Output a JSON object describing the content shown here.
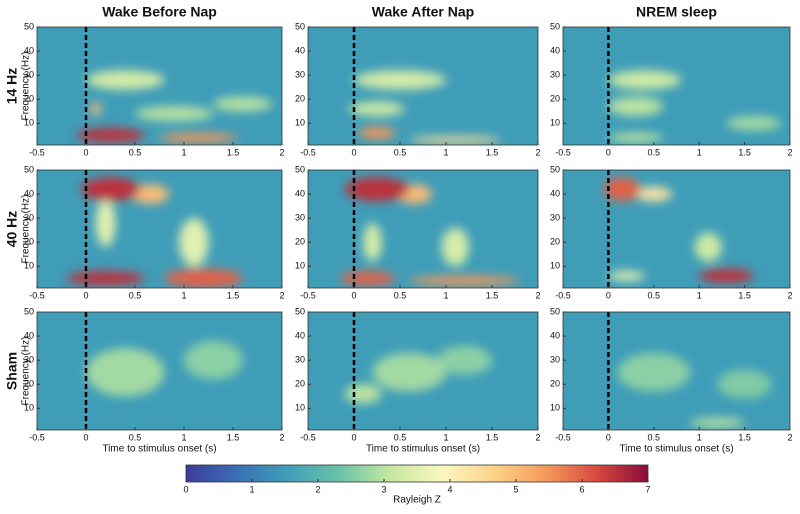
{
  "chart_data": {
    "type": "heatmap",
    "columns": [
      "Wake Before Nap",
      "Wake After Nap",
      "NREM sleep"
    ],
    "rows": [
      "14 Hz",
      "40 Hz",
      "Sham"
    ],
    "xlabel": "Time to stimulus onset (s)",
    "ylabel": "Frequency (Hz)",
    "xlim": [
      -0.5,
      2
    ],
    "xticks": [
      -0.5,
      0,
      0.5,
      1,
      1.5,
      2
    ],
    "ylim": [
      1,
      50
    ],
    "yticks": [
      10,
      20,
      30,
      40,
      50
    ],
    "onset": 0,
    "background_z": 1.5,
    "colorbar": {
      "label": "Rayleigh Z",
      "lim": [
        0,
        7
      ],
      "ticks": [
        0,
        1,
        2,
        3,
        4,
        5,
        6,
        7
      ],
      "colors": [
        "#3b3c9c",
        "#3a6fb5",
        "#3fa0b8",
        "#6cc3a8",
        "#c7e8a0",
        "#fbf7c0",
        "#fdd38a",
        "#f59a5b",
        "#d8493f",
        "#8a0c3a"
      ]
    },
    "panels": [
      [
        [
          {
            "t": 1.6,
            "f": 18,
            "dt": 0.3,
            "df": 3,
            "z": 3
          },
          {
            "t": 0.9,
            "f": 14,
            "dt": 0.4,
            "df": 3,
            "z": 3
          },
          {
            "t": 0.4,
            "f": 28,
            "dt": 0.4,
            "df": 4,
            "z": 3.3
          },
          {
            "t": 0.1,
            "f": 16,
            "dt": 0.05,
            "df": 3,
            "z": 5
          },
          {
            "t": 1.15,
            "f": 4,
            "dt": 0.4,
            "df": 2,
            "z": 5.5
          },
          {
            "t": 0.25,
            "f": 5,
            "dt": 0.35,
            "df": 3,
            "z": 6.5
          }
        ],
        [
          {
            "t": 0.25,
            "f": 16,
            "dt": 0.3,
            "df": 3,
            "z": 3.2
          },
          {
            "t": 0.5,
            "f": 28,
            "dt": 0.5,
            "df": 4,
            "z": 3.3
          },
          {
            "t": 1.1,
            "f": 3,
            "dt": 0.5,
            "df": 1.5,
            "z": 4.5
          },
          {
            "t": 0.25,
            "f": 6,
            "dt": 0.2,
            "df": 2.5,
            "z": 5.5
          }
        ],
        [
          {
            "t": 1.6,
            "f": 10,
            "dt": 0.3,
            "df": 3,
            "z": 2.8
          },
          {
            "t": 0.3,
            "f": 17,
            "dt": 0.3,
            "df": 4,
            "z": 3
          },
          {
            "t": 0.3,
            "f": 4,
            "dt": 0.3,
            "df": 2,
            "z": 3
          },
          {
            "t": 0.4,
            "f": 28,
            "dt": 0.4,
            "df": 4,
            "z": 3.2
          }
        ]
      ],
      [
        [
          {
            "t": 0.2,
            "f": 28,
            "dt": 0.1,
            "df": 10,
            "z": 3.5
          },
          {
            "t": 1.1,
            "f": 20,
            "dt": 0.15,
            "df": 10,
            "z": 3.5
          },
          {
            "t": 0.65,
            "f": 40,
            "dt": 0.2,
            "df": 4,
            "z": 5
          },
          {
            "t": 1.2,
            "f": 5,
            "dt": 0.4,
            "df": 4,
            "z": 6
          },
          {
            "t": 0.25,
            "f": 42,
            "dt": 0.3,
            "df": 5,
            "z": 6.5
          },
          {
            "t": 0.2,
            "f": 5,
            "dt": 0.4,
            "df": 3,
            "z": 6.5
          }
        ],
        [
          {
            "t": 1.1,
            "f": 18,
            "dt": 0.15,
            "df": 8,
            "z": 3.3
          },
          {
            "t": 0.2,
            "f": 20,
            "dt": 0.1,
            "df": 8,
            "z": 3.3
          },
          {
            "t": 0.65,
            "f": 40,
            "dt": 0.2,
            "df": 4,
            "z": 5
          },
          {
            "t": 1.2,
            "f": 4,
            "dt": 0.6,
            "df": 2,
            "z": 5.5
          },
          {
            "t": 0.15,
            "f": 5,
            "dt": 0.3,
            "df": 3,
            "z": 6
          },
          {
            "t": 0.25,
            "f": 42,
            "dt": 0.35,
            "df": 5,
            "z": 6.5
          }
        ],
        [
          {
            "t": 1.1,
            "f": 18,
            "dt": 0.15,
            "df": 6,
            "z": 3.2
          },
          {
            "t": 0.2,
            "f": 6,
            "dt": 0.2,
            "df": 2,
            "z": 3.5
          },
          {
            "t": 0.5,
            "f": 40,
            "dt": 0.2,
            "df": 3,
            "z": 4.3
          },
          {
            "t": 0.15,
            "f": 42,
            "dt": 0.2,
            "df": 5,
            "z": 6
          },
          {
            "t": 1.3,
            "f": 6,
            "dt": 0.3,
            "df": 3,
            "z": 6.5
          }
        ]
      ],
      [
        [
          {
            "t": 1.3,
            "f": 30,
            "dt": 0.3,
            "df": 8,
            "z": 2.6
          },
          {
            "t": 0.4,
            "f": 25,
            "dt": 0.4,
            "df": 10,
            "z": 2.8
          }
        ],
        [
          {
            "t": 1.2,
            "f": 30,
            "dt": 0.3,
            "df": 6,
            "z": 2.6
          },
          {
            "t": 0.6,
            "f": 25,
            "dt": 0.4,
            "df": 8,
            "z": 2.8
          },
          {
            "t": 0.1,
            "f": 16,
            "dt": 0.2,
            "df": 4,
            "z": 3
          }
        ],
        [
          {
            "t": 1.5,
            "f": 20,
            "dt": 0.3,
            "df": 6,
            "z": 2.5
          },
          {
            "t": 0.5,
            "f": 25,
            "dt": 0.4,
            "df": 8,
            "z": 2.6
          },
          {
            "t": 1.2,
            "f": 4,
            "dt": 0.3,
            "df": 2,
            "z": 3
          }
        ]
      ]
    ]
  }
}
